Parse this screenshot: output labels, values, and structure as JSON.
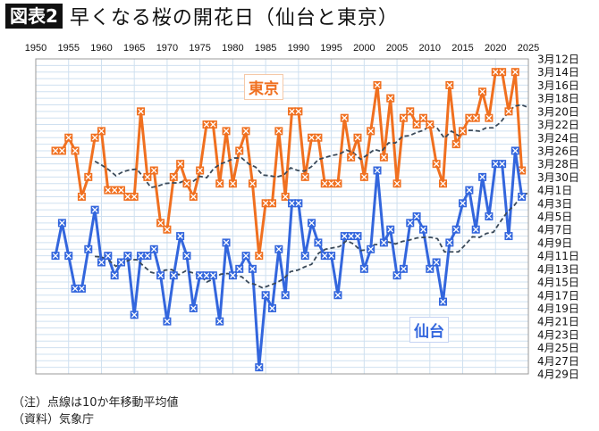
{
  "header": {
    "figure_label": "図表2",
    "title": "早くなる桜の開花日（仙台と東京）"
  },
  "notes": [
    "（注）点線は10か年移動平均値",
    "（資料）気象庁"
  ],
  "colors": {
    "tokyo": "#f07020",
    "sendai": "#3366dd",
    "moving_average": "#3a4a5a",
    "grid": "#cfe0f0"
  },
  "chart_data": {
    "type": "line",
    "title": "早くなる桜の開花日（仙台と東京）",
    "x_ticks": [
      "1950",
      "1955",
      "1960",
      "1965",
      "1970",
      "1975",
      "1980",
      "1985",
      "1990",
      "1995",
      "2000",
      "2005",
      "2010",
      "2015",
      "2020",
      "2025"
    ],
    "xlim": [
      1950,
      2025
    ],
    "y_ticks": [
      "3月12日",
      "3月14日",
      "3月16日",
      "3月18日",
      "3月20日",
      "3月22日",
      "3月24日",
      "3月26日",
      "3月28日",
      "3月30日",
      "4月1日",
      "4月3日",
      "4月5日",
      "4月7日",
      "4月9日",
      "4月11日",
      "4月13日",
      "4月15日",
      "4月17日",
      "4月19日",
      "4月21日",
      "4月23日",
      "4月25日",
      "4月27日",
      "4月29日"
    ],
    "ylim": [
      "3/12",
      "4/29"
    ],
    "y_axis_side": "right",
    "y_reversed": true,
    "grid": true,
    "moving_average_window_years": 10,
    "x_start": 1953,
    "series": [
      {
        "name": "東京",
        "values": [
          "3/26",
          "3/26",
          "3/24",
          "3/26",
          "4/2",
          "3/30",
          "3/24",
          "3/23",
          "4/1",
          "4/1",
          "4/1",
          "4/2",
          "4/2",
          "3/20",
          "3/30",
          "3/29",
          "4/6",
          "4/7",
          "3/30",
          "3/28",
          "3/31",
          "4/2",
          "3/29",
          "3/22",
          "3/22",
          "3/31",
          "3/23",
          "3/31",
          "3/26",
          "3/23",
          "3/31",
          "4/11",
          "4/3",
          "4/3",
          "3/23",
          "4/2",
          "3/20",
          "3/20",
          "3/30",
          "3/24",
          "3/24",
          "3/31",
          "3/31",
          "3/31",
          "3/21",
          "3/27",
          "3/24",
          "3/30",
          "3/23",
          "3/16",
          "3/27",
          "3/18",
          "3/31",
          "3/21",
          "3/20",
          "3/22",
          "3/21",
          "3/22",
          "3/28",
          "3/31",
          "3/16",
          "3/25",
          "3/23",
          "3/21",
          "3/21",
          "3/17",
          "3/21",
          "3/14",
          "3/14",
          "3/20",
          "3/14",
          "3/29"
        ]
      },
      {
        "name": "仙台",
        "values": [
          "4/11",
          "4/6",
          "4/11",
          "4/16",
          "4/16",
          "4/10",
          "4/4",
          "4/12",
          "4/11",
          "4/14",
          "4/12",
          "4/11",
          "4/20",
          "4/11",
          "4/11",
          "4/10",
          "4/14",
          "4/21",
          "4/14",
          "4/8",
          "4/11",
          "4/19",
          "4/14",
          "4/14",
          "4/14",
          "4/21",
          "4/9",
          "4/14",
          "4/13",
          "4/11",
          "4/13",
          "4/28",
          "4/17",
          "4/19",
          "4/10",
          "4/17",
          "4/3",
          "4/3",
          "4/11",
          "4/6",
          "4/9",
          "4/11",
          "4/11",
          "4/17",
          "4/8",
          "4/8",
          "4/8",
          "4/13",
          "4/10",
          "3/29",
          "4/9",
          "4/7",
          "4/14",
          "4/13",
          "4/6",
          "4/5",
          "4/7",
          "4/13",
          "4/12",
          "4/18",
          "4/9",
          "4/7",
          "4/3",
          "4/1",
          "4/7",
          "3/30",
          "4/5",
          "3/28",
          "3/28",
          "4/8",
          "3/26",
          "4/2"
        ]
      }
    ]
  }
}
